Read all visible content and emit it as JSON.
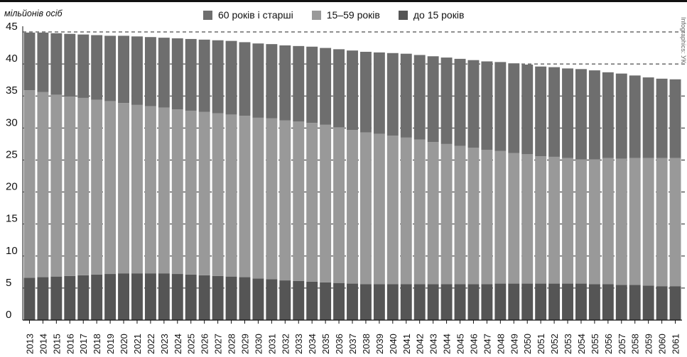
{
  "chart_data": {
    "type": "bar",
    "stacked": true,
    "title": "",
    "xlabel": "",
    "ylabel": "мільйонів осіб",
    "ylim": [
      0,
      45
    ],
    "yticks": [
      0,
      5,
      10,
      15,
      20,
      25,
      30,
      35,
      40,
      45
    ],
    "grid": "dashed-horizontal",
    "legend_position": "top-center",
    "credit": "Infographics: УК",
    "categories": [
      "2013",
      "2014",
      "2015",
      "2016",
      "2017",
      "2018",
      "2019",
      "2020",
      "2021",
      "2022",
      "2023",
      "2024",
      "2025",
      "2026",
      "2027",
      "2028",
      "2029",
      "2030",
      "2031",
      "2032",
      "2033",
      "2034",
      "2035",
      "2036",
      "2037",
      "2038",
      "2039",
      "2040",
      "2041",
      "2042",
      "2043",
      "2044",
      "2045",
      "2046",
      "2047",
      "2048",
      "2049",
      "2050",
      "2051",
      "2052",
      "2053",
      "2054",
      "2055",
      "2056",
      "2057",
      "2058",
      "2059",
      "2060",
      "2061"
    ],
    "series": [
      {
        "name": "до 15 років",
        "color": "#555555",
        "values": [
          6.6,
          6.7,
          6.8,
          6.9,
          7.0,
          7.1,
          7.2,
          7.3,
          7.3,
          7.3,
          7.3,
          7.2,
          7.1,
          7.0,
          6.9,
          6.8,
          6.7,
          6.5,
          6.4,
          6.2,
          6.1,
          6.0,
          5.9,
          5.8,
          5.7,
          5.6,
          5.6,
          5.6,
          5.6,
          5.6,
          5.6,
          5.6,
          5.6,
          5.6,
          5.6,
          5.7,
          5.7,
          5.7,
          5.7,
          5.7,
          5.7,
          5.7,
          5.6,
          5.6,
          5.5,
          5.5,
          5.4,
          5.3,
          5.3
        ]
      },
      {
        "name": "15–59 років",
        "color": "#999999",
        "values": [
          29.3,
          28.9,
          28.4,
          28.0,
          27.7,
          27.3,
          27.0,
          26.6,
          26.3,
          26.1,
          25.9,
          25.7,
          25.6,
          25.5,
          25.4,
          25.3,
          25.2,
          25.1,
          25.1,
          25.0,
          24.9,
          24.8,
          24.6,
          24.3,
          24.0,
          23.7,
          23.5,
          23.2,
          22.9,
          22.6,
          22.2,
          21.9,
          21.6,
          21.3,
          21.0,
          20.7,
          20.4,
          20.2,
          19.9,
          19.8,
          19.6,
          19.4,
          19.5,
          19.7,
          19.7,
          19.8,
          19.9,
          20.0,
          20.0
        ]
      },
      {
        "name": "60 років і старші",
        "color": "#6e6e6e",
        "values": [
          9.0,
          9.3,
          9.6,
          9.8,
          9.9,
          10.1,
          10.2,
          10.5,
          10.7,
          10.8,
          10.9,
          11.1,
          11.2,
          11.3,
          11.4,
          11.5,
          11.5,
          11.6,
          11.6,
          11.7,
          11.8,
          11.9,
          12.0,
          12.2,
          12.4,
          12.6,
          12.7,
          12.9,
          13.1,
          13.2,
          13.4,
          13.5,
          13.6,
          13.7,
          13.8,
          13.9,
          14.0,
          14.0,
          14.0,
          14.0,
          14.0,
          14.1,
          13.9,
          13.4,
          13.3,
          12.9,
          12.6,
          12.4,
          12.3
        ]
      }
    ]
  }
}
